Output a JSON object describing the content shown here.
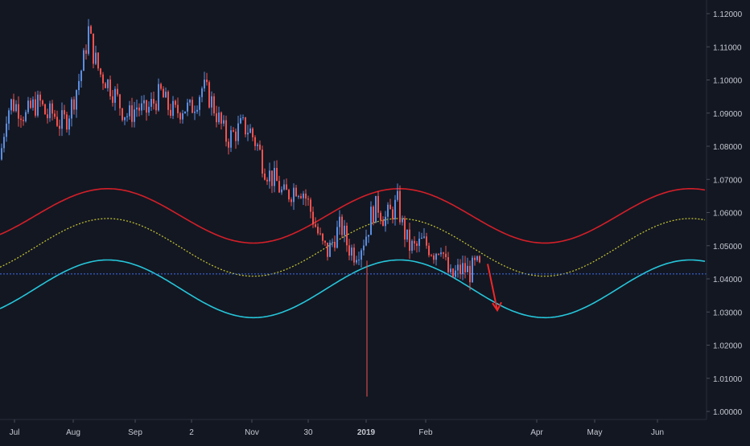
{
  "colors": {
    "background": "#131722",
    "bull": "#5b8de0",
    "bear": "#ef5350",
    "upper_curve": "#d41f28",
    "mid_curve": "#c8c832",
    "lower_curve": "#26c6da",
    "hline": "#3f6ff0",
    "arrow": "#f02828",
    "axis_text": "#c6c9d0",
    "axis_line": "#2a2e39"
  },
  "chart_data": {
    "type": "candlestick",
    "title": "",
    "xlabel": "",
    "ylabel": "",
    "ylim": [
      0.998,
      1.124
    ],
    "grid": false,
    "y_ticks": [
      "1.12000",
      "1.11000",
      "1.10000",
      "1.09000",
      "1.08000",
      "1.07000",
      "1.06000",
      "1.05000",
      "1.04000",
      "1.03000",
      "1.02000",
      "1.01000",
      "1.00000"
    ],
    "x_ticks": [
      {
        "label": "Jul",
        "bold": false
      },
      {
        "label": "Aug",
        "bold": false
      },
      {
        "label": "Sep",
        "bold": false
      },
      {
        "label": "2",
        "bold": false
      },
      {
        "label": "Nov",
        "bold": false
      },
      {
        "label": "30",
        "bold": false
      },
      {
        "label": "2019",
        "bold": true
      },
      {
        "label": "Feb",
        "bold": false
      },
      {
        "label": "Apr",
        "bold": false
      },
      {
        "label": "May",
        "bold": false
      },
      {
        "label": "Jun",
        "bold": false
      }
    ],
    "current_price": 1.0415,
    "series": [
      {
        "name": "upper",
        "kind": "cycle",
        "center": 1.059,
        "amplitude": 0.0082
      },
      {
        "name": "middle",
        "kind": "cycle",
        "center": 1.0495,
        "amplitude": 0.0087,
        "dotted": true
      },
      {
        "name": "lower",
        "kind": "cycle",
        "center": 1.037,
        "amplitude": 0.0087
      }
    ],
    "price_path": [
      [
        0,
        1.076
      ],
      [
        8,
        1.09
      ],
      [
        14,
        1.093
      ],
      [
        22,
        1.092
      ],
      [
        32,
        1.089
      ],
      [
        40,
        1.092
      ],
      [
        50,
        1.093
      ],
      [
        58,
        1.089
      ],
      [
        66,
        1.09
      ],
      [
        74,
        1.087
      ],
      [
        82,
        1.088
      ],
      [
        90,
        1.093
      ],
      [
        98,
        1.1
      ],
      [
        104,
        1.106
      ],
      [
        110,
        1.115
      ],
      [
        116,
        1.108
      ],
      [
        124,
        1.102
      ],
      [
        132,
        1.1
      ],
      [
        142,
        1.096
      ],
      [
        152,
        1.091
      ],
      [
        160,
        1.089
      ],
      [
        170,
        1.092
      ],
      [
        180,
        1.09
      ],
      [
        190,
        1.093
      ],
      [
        200,
        1.096
      ],
      [
        208,
        1.092
      ],
      [
        218,
        1.09
      ],
      [
        228,
        1.092
      ],
      [
        236,
        1.091
      ],
      [
        244,
        1.094
      ],
      [
        252,
        1.098
      ],
      [
        262,
        1.094
      ],
      [
        272,
        1.088
      ],
      [
        282,
        1.082
      ],
      [
        292,
        1.084
      ],
      [
        300,
        1.086
      ],
      [
        310,
        1.085
      ],
      [
        320,
        1.08
      ],
      [
        328,
        1.074
      ],
      [
        336,
        1.071
      ],
      [
        344,
        1.069
      ],
      [
        352,
        1.065
      ],
      [
        360,
        1.066
      ],
      [
        368,
        1.068
      ],
      [
        376,
        1.067
      ],
      [
        384,
        1.062
      ],
      [
        392,
        1.056
      ],
      [
        400,
        1.05
      ],
      [
        408,
        1.048
      ],
      [
        416,
        1.053
      ],
      [
        424,
        1.056
      ],
      [
        432,
        1.05
      ],
      [
        440,
        1.048
      ],
      [
        448,
        1.05
      ],
      [
        456,
        1.054
      ],
      [
        462,
        1.06
      ],
      [
        470,
        1.062
      ],
      [
        478,
        1.058
      ],
      [
        486,
        1.06
      ],
      [
        494,
        1.063
      ],
      [
        500,
        1.056
      ],
      [
        508,
        1.05
      ],
      [
        516,
        1.049
      ],
      [
        524,
        1.051
      ],
      [
        532,
        1.05
      ],
      [
        540,
        1.048
      ],
      [
        548,
        1.051
      ],
      [
        554,
        1.044
      ],
      [
        560,
        1.04
      ],
      [
        568,
        1.042
      ],
      [
        576,
        1.043
      ],
      [
        584,
        1.042
      ],
      [
        592,
        1.044
      ],
      [
        600,
        1.0415
      ]
    ],
    "spike": {
      "value_low": 1.0045
    },
    "arrow": {
      "from": 1.0445,
      "to": 1.0305
    }
  }
}
